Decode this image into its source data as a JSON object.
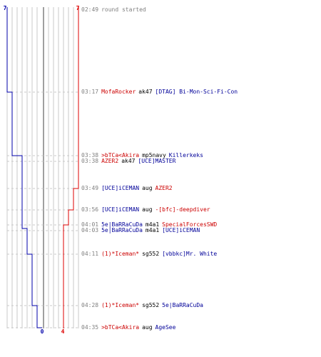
{
  "colors": {
    "team_blue": "#0000aa",
    "team_red": "#dd0000",
    "grid": "#c8c8c8",
    "center": "#808080",
    "dash": "#c8c8c8"
  },
  "scores": {
    "blue_start": "7",
    "red_start": "7",
    "blue_end": "0",
    "red_end": "4"
  },
  "events": [
    {
      "time": "02:49",
      "text": "round started",
      "type": "info"
    },
    {
      "time": "03:17",
      "killer": "MofaRocker",
      "killer_team": "red",
      "weapon": "ak47",
      "victim": "[DTAG] Bi-Mon-Sci-Fi-Con",
      "victim_team": "blue"
    },
    {
      "time": "03:38",
      "killer": ">bTCa<Akira",
      "killer_team": "red",
      "weapon": "mp5navy",
      "victim": "Killerkeks",
      "victim_team": "blue"
    },
    {
      "time": "03:38",
      "killer": "AZER2",
      "killer_team": "red",
      "weapon": "ak47",
      "victim": "[UCE]MASTER",
      "victim_team": "blue"
    },
    {
      "time": "03:49",
      "killer": "[UCE]iCEMAN",
      "killer_team": "blue",
      "weapon": "aug",
      "victim": "AZER2",
      "victim_team": "red"
    },
    {
      "time": "03:56",
      "killer": "[UCE]iCEMAN",
      "killer_team": "blue",
      "weapon": "aug",
      "victim": "-[bfc]-deepdiver",
      "victim_team": "red"
    },
    {
      "time": "04:01",
      "killer": "5e|BaRRaCuDa",
      "killer_team": "blue",
      "weapon": "m4a1",
      "victim": "SpecialForcesSWD",
      "victim_team": "red"
    },
    {
      "time": "04:03",
      "killer": "5e|BaRRaCuDa",
      "killer_team": "blue",
      "weapon": "m4a1",
      "victim": "[UCE]iCEMAN",
      "victim_team": "blue"
    },
    {
      "time": "04:11",
      "killer": "(1)*Iceman*",
      "killer_team": "red",
      "weapon": "sg552",
      "victim": "[vbbkc]Mr. White",
      "victim_team": "blue"
    },
    {
      "time": "04:28",
      "killer": "(1)*Iceman*",
      "killer_team": "red",
      "weapon": "sg552",
      "victim": "5e|BaRRaCuDa",
      "victim_team": "blue"
    },
    {
      "time": "04:35",
      "killer": ">bTCa<Akira",
      "killer_team": "red",
      "weapon": "aug",
      "victim": "AgeSee",
      "victim_team": "blue"
    }
  ]
}
